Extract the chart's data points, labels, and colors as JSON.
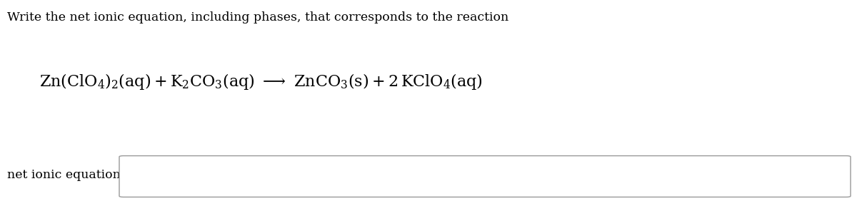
{
  "background_color": "#ffffff",
  "text_color": "#000000",
  "instruction_text": "Write the net ionic equation, including phases, that corresponds to the reaction",
  "instruction_fontsize": 12.5,
  "equation_fontsize": 16,
  "label_text": "net ionic equation:",
  "label_fontsize": 12.5,
  "fig_width": 12.0,
  "fig_height": 2.89,
  "dpi": 100
}
